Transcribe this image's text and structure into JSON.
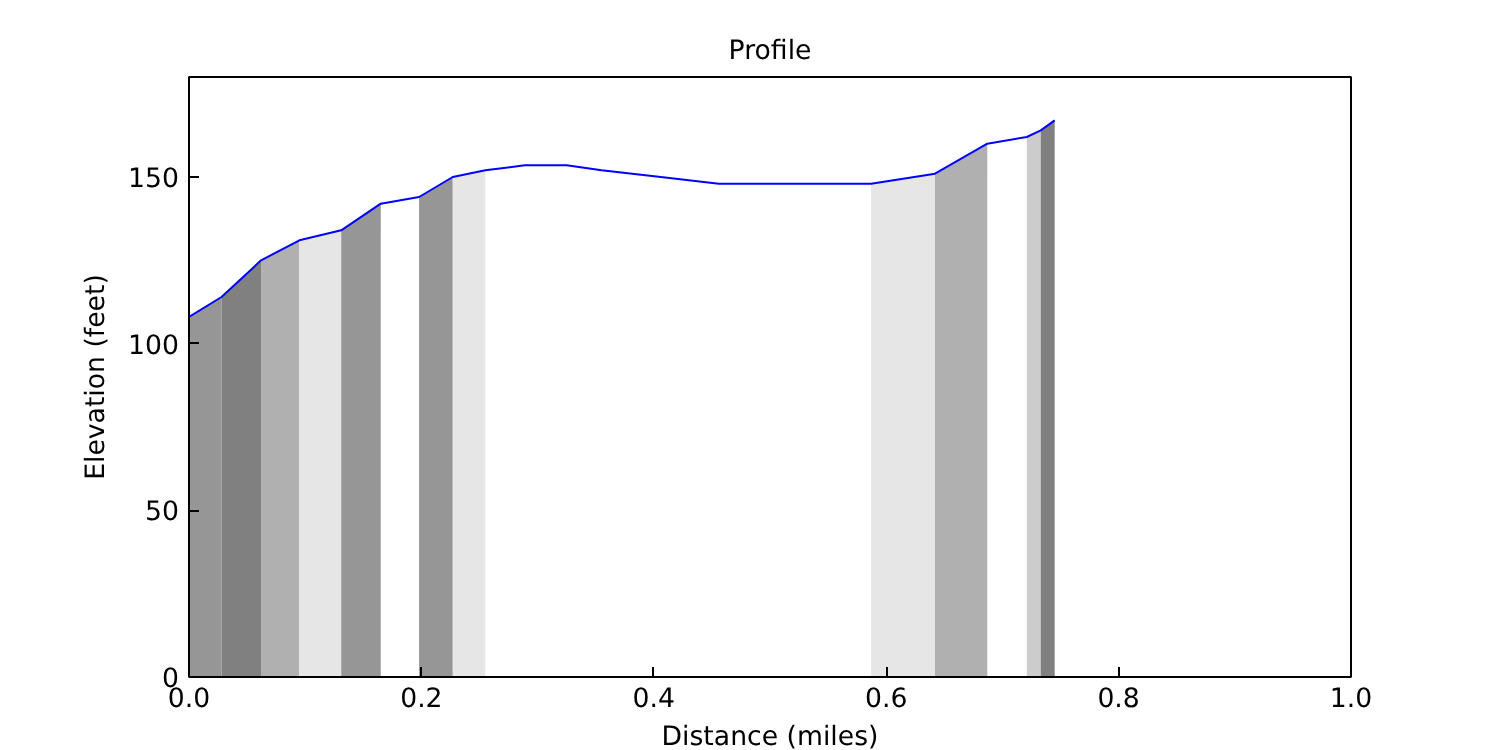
{
  "chart_data": {
    "type": "line",
    "title": "Profile",
    "xlabel": "Distance (miles)",
    "ylabel": "Elevation (feet)",
    "xlim": [
      0,
      1
    ],
    "ylim": [
      0,
      180
    ],
    "xticks": [
      {
        "value": 0,
        "label": "0.0"
      },
      0.2,
      0.4,
      0.6,
      0.8,
      {
        "value": 1,
        "label": "1.0"
      }
    ],
    "yticks": [
      0,
      50,
      100,
      150
    ],
    "grid": false,
    "series": [
      {
        "type": "area",
        "color": "#969696",
        "x": [
          0,
          0.028
        ],
        "values": [
          108,
          114
        ]
      },
      {
        "type": "area",
        "color": "#808080",
        "x": [
          0.028,
          0.062
        ],
        "values": [
          114,
          125
        ]
      },
      {
        "type": "area",
        "color": "#b0b0b0",
        "x": [
          0.062,
          0.095
        ],
        "values": [
          125,
          131
        ]
      },
      {
        "type": "area",
        "color": "#e6e6e6",
        "x": [
          0.095,
          0.131
        ],
        "values": [
          131,
          134
        ]
      },
      {
        "type": "area",
        "color": "#969696",
        "x": [
          0.131,
          0.165
        ],
        "values": [
          134,
          142
        ]
      },
      {
        "type": "area",
        "color": "#969696",
        "x": [
          0.198,
          0.227
        ],
        "values": [
          144,
          150
        ]
      },
      {
        "type": "area",
        "color": "#e6e6e6",
        "x": [
          0.227,
          0.255
        ],
        "values": [
          150,
          152
        ]
      },
      {
        "type": "area",
        "color": "#e6e6e6",
        "x": [
          0.587,
          0.642
        ],
        "values": [
          148,
          151
        ]
      },
      {
        "type": "area",
        "color": "#b0b0b0",
        "x": [
          0.642,
          0.687
        ],
        "values": [
          151,
          160
        ]
      },
      {
        "type": "area",
        "color": "#cccccc",
        "x": [
          0.721,
          0.733
        ],
        "values": [
          162,
          164
        ]
      },
      {
        "type": "area",
        "color": "#808080",
        "x": [
          0.733,
          0.745
        ],
        "values": [
          164,
          167
        ]
      },
      {
        "color": "#0000ff",
        "x": [
          0,
          0.028,
          0.062,
          0.095,
          0.131,
          0.165,
          0.198,
          0.227,
          0.255,
          0.289,
          0.325,
          0.355,
          0.406,
          0.456,
          0.587,
          0.642,
          0.687,
          0.721,
          0.733,
          0.745
        ],
        "values": [
          108,
          114,
          125,
          131,
          134,
          142,
          144,
          150,
          152,
          153.5,
          153.5,
          152,
          150,
          148,
          148,
          151,
          160,
          162,
          164,
          167
        ]
      }
    ]
  }
}
